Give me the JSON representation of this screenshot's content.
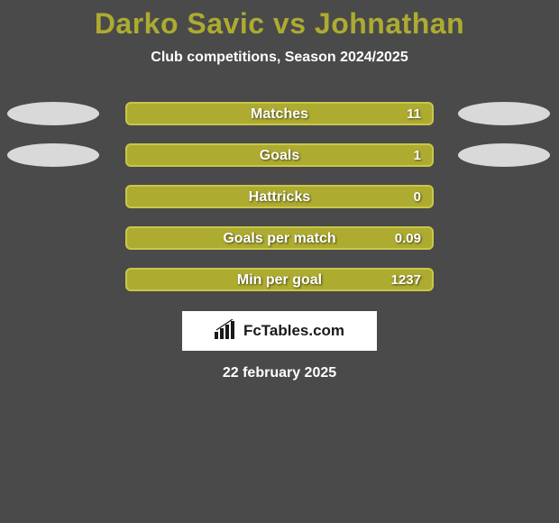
{
  "title": "Darko Savic vs Johnathan",
  "subtitle": "Club competitions, Season 2024/2025",
  "date": "22 february 2025",
  "logo_text": "FcTables.com",
  "colors": {
    "title": "#adab30",
    "background": "#4a4a4a",
    "bar_fill": "#adab30",
    "bar_border": "#c9c74a",
    "ellipse_left": "#d9d9d9",
    "ellipse_right": "#d9d9d9",
    "text_white": "#ffffff"
  },
  "layout": {
    "bar_center_width": 342,
    "value_right_inset": 12
  },
  "rows": [
    {
      "label": "Matches",
      "value": "11",
      "has_ellipses": true
    },
    {
      "label": "Goals",
      "value": "1",
      "has_ellipses": true
    },
    {
      "label": "Hattricks",
      "value": "0",
      "has_ellipses": false
    },
    {
      "label": "Goals per match",
      "value": "0.09",
      "has_ellipses": false
    },
    {
      "label": "Min per goal",
      "value": "1237",
      "has_ellipses": false
    }
  ]
}
